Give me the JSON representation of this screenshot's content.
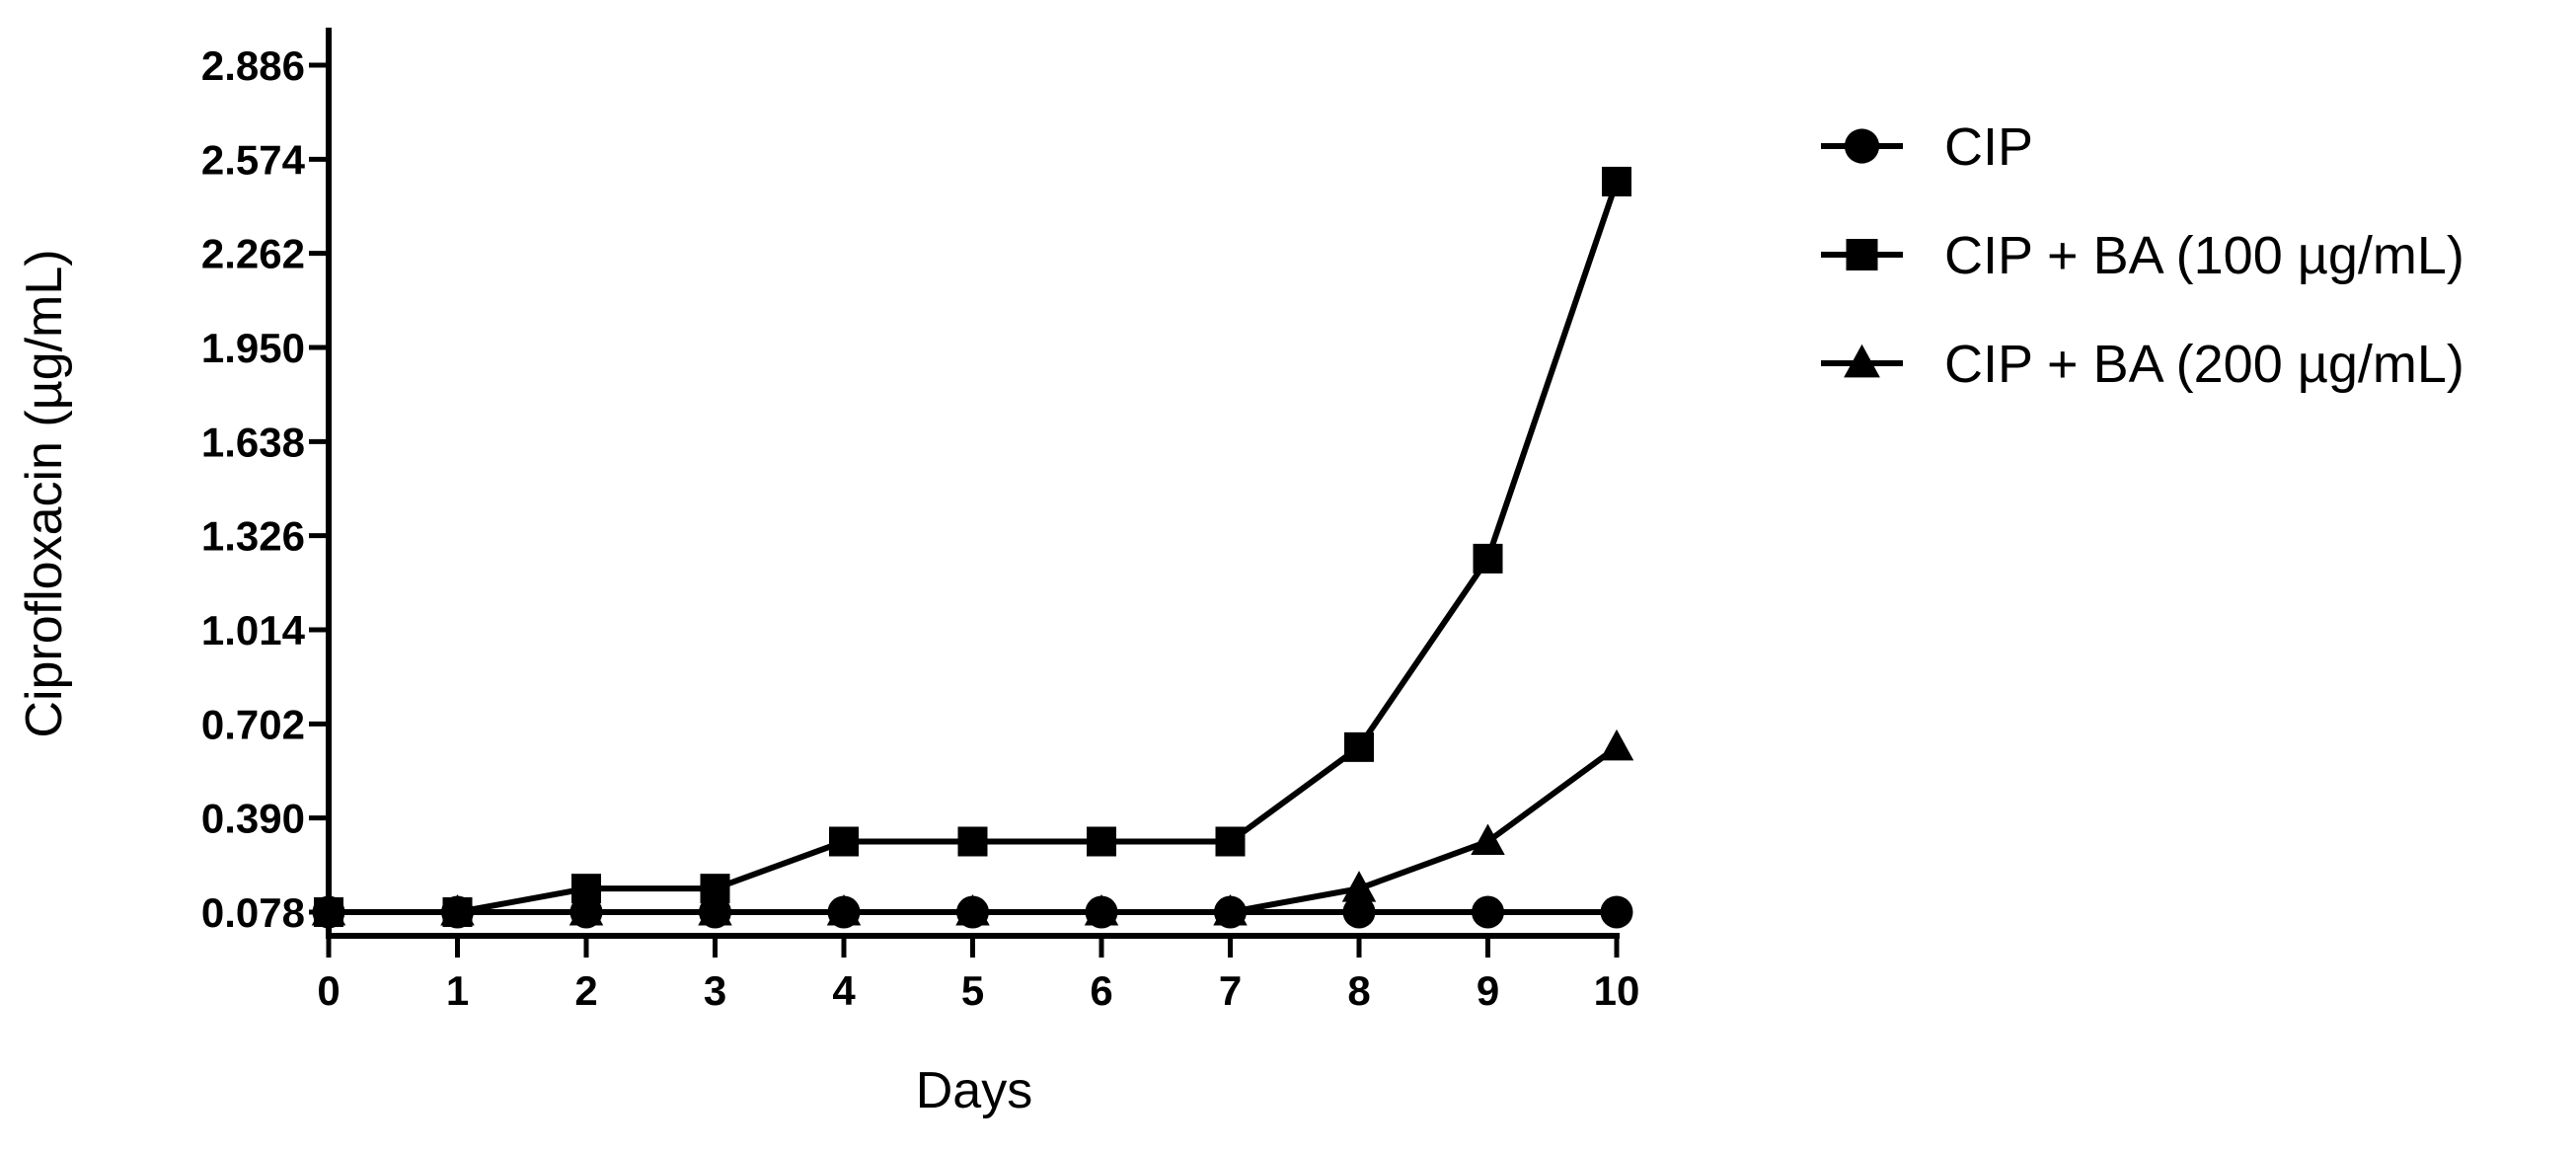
{
  "chart_data": {
    "type": "line",
    "title": "",
    "xlabel": "Days",
    "ylabel": "Ciprofloxacin (µg/mL)",
    "x": [
      0,
      1,
      2,
      3,
      4,
      5,
      6,
      7,
      8,
      9,
      10
    ],
    "xlim": [
      0,
      10
    ],
    "ylim": [
      0.0,
      2.98
    ],
    "x_ticks": [
      0,
      1,
      2,
      3,
      4,
      5,
      6,
      7,
      8,
      9,
      10
    ],
    "y_ticks": [
      0.078,
      0.39,
      0.702,
      1.014,
      1.326,
      1.638,
      1.95,
      2.262,
      2.574,
      2.886
    ],
    "y_tick_labels": [
      "0.078",
      "0.390",
      "0.702",
      "1.014",
      "1.326",
      "1.638",
      "1.950",
      "2.262",
      "2.574",
      "2.886"
    ],
    "x_tick_labels": [
      "0",
      "1",
      "2",
      "3",
      "4",
      "5",
      "6",
      "7",
      "8",
      "9",
      "10"
    ],
    "grid": false,
    "legend_position": "right",
    "series": [
      {
        "name": "CIP",
        "marker": "circle",
        "color": "#000000",
        "values": [
          0.078,
          0.078,
          0.078,
          0.078,
          0.078,
          0.078,
          0.078,
          0.078,
          0.078,
          0.078,
          0.078
        ]
      },
      {
        "name": "CIP + BA (100 µg/mL)",
        "marker": "square",
        "color": "#000000",
        "values": [
          0.078,
          0.078,
          0.156,
          0.156,
          0.312,
          0.312,
          0.312,
          0.312,
          0.625,
          1.25,
          2.5
        ]
      },
      {
        "name": "CIP + BA (200 µg/mL)",
        "marker": "triangle",
        "color": "#000000",
        "values": [
          0.078,
          0.078,
          0.078,
          0.078,
          0.078,
          0.078,
          0.078,
          0.078,
          0.156,
          0.312,
          0.625
        ]
      }
    ]
  }
}
